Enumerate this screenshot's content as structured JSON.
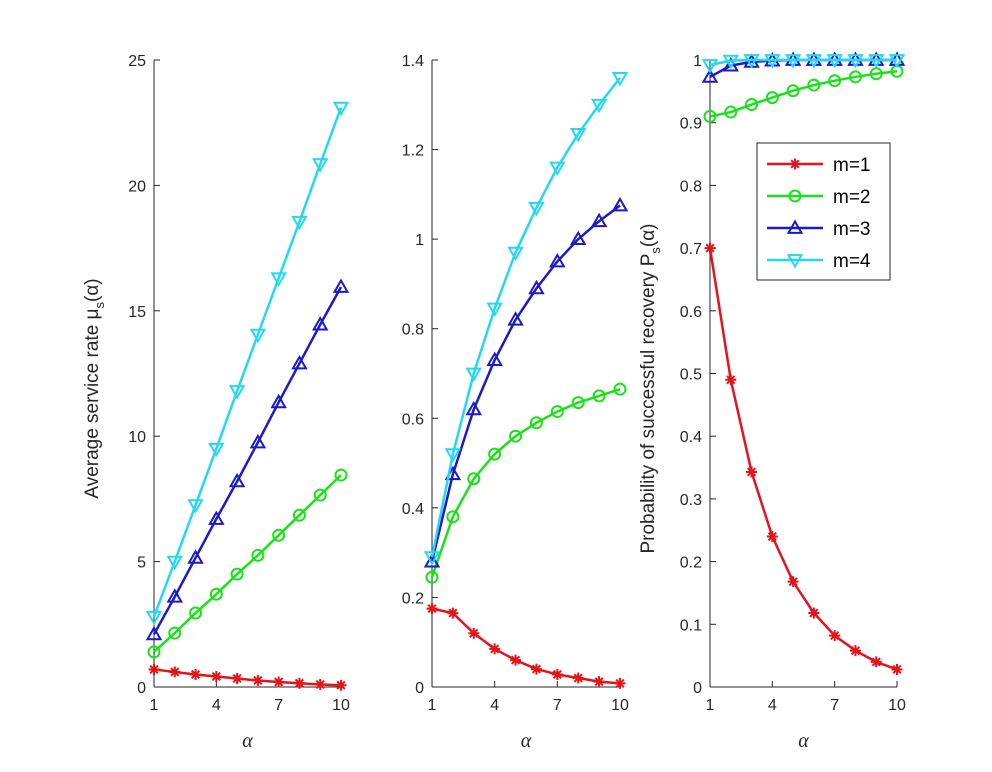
{
  "chart_data": [
    {
      "type": "line",
      "xlabel": "α",
      "ylabel": "Average service rate μ",
      "ylabel_sub": "s",
      "ylabel_arg": "(α)",
      "xlim": [
        1,
        10
      ],
      "ylim": [
        0,
        25
      ],
      "xticks": [
        1,
        4,
        7,
        10
      ],
      "yticks": [
        0,
        5,
        10,
        15,
        20,
        25
      ],
      "ytick_labels": [
        "0",
        "5",
        "10",
        "15",
        "20",
        "25"
      ],
      "x": [
        1,
        2,
        3,
        4,
        5,
        6,
        7,
        8,
        9,
        10
      ],
      "series": [
        {
          "name": "m=1",
          "values": [
            0.7,
            0.6,
            0.5,
            0.42,
            0.34,
            0.26,
            0.2,
            0.15,
            0.1,
            0.07
          ]
        },
        {
          "name": "m=2",
          "values": [
            1.4,
            2.15,
            2.95,
            3.7,
            4.5,
            5.25,
            6.05,
            6.85,
            7.65,
            8.45
          ]
        },
        {
          "name": "m=3",
          "values": [
            2.1,
            3.6,
            5.15,
            6.7,
            8.2,
            9.75,
            11.35,
            12.9,
            14.45,
            15.95
          ]
        },
        {
          "name": "m=4",
          "values": [
            2.8,
            5.0,
            7.25,
            9.5,
            11.8,
            14.05,
            16.3,
            18.55,
            20.85,
            23.1
          ]
        }
      ]
    },
    {
      "type": "line",
      "xlabel": "α",
      "ylabel": "",
      "xlim": [
        1,
        10
      ],
      "ylim": [
        0,
        1.4
      ],
      "xticks": [
        1,
        4,
        7,
        10
      ],
      "yticks": [
        0,
        0.2,
        0.4,
        0.6,
        0.8,
        1.0,
        1.2,
        1.4
      ],
      "ytick_labels": [
        "0",
        "0.2",
        "0.4",
        "0.6",
        "0.8",
        "1",
        "1.2",
        "1.4"
      ],
      "x": [
        1,
        2,
        3,
        4,
        5,
        6,
        7,
        8,
        9,
        10
      ],
      "series": [
        {
          "name": "m=1",
          "values": [
            0.175,
            0.165,
            0.12,
            0.085,
            0.06,
            0.04,
            0.028,
            0.02,
            0.012,
            0.008
          ]
        },
        {
          "name": "m=2",
          "values": [
            0.245,
            0.38,
            0.465,
            0.52,
            0.56,
            0.59,
            0.615,
            0.635,
            0.65,
            0.665
          ]
        },
        {
          "name": "m=3",
          "values": [
            0.28,
            0.475,
            0.62,
            0.73,
            0.82,
            0.89,
            0.95,
            1.0,
            1.04,
            1.075
          ]
        },
        {
          "name": "m=4",
          "values": [
            0.29,
            0.52,
            0.7,
            0.845,
            0.97,
            1.07,
            1.16,
            1.235,
            1.3,
            1.36
          ]
        }
      ]
    },
    {
      "type": "line",
      "xlabel": "α",
      "ylabel": "Probability of successful recovery P",
      "ylabel_sub": "s",
      "ylabel_arg": "(α)",
      "xlim": [
        1,
        10
      ],
      "ylim": [
        0,
        1
      ],
      "xticks": [
        1,
        4,
        7,
        10
      ],
      "yticks": [
        0,
        0.1,
        0.2,
        0.3,
        0.4,
        0.5,
        0.6,
        0.7,
        0.8,
        0.9,
        1.0
      ],
      "ytick_labels": [
        "0",
        "0.1",
        "0.2",
        "0.3",
        "0.4",
        "0.5",
        "0.6",
        "0.7",
        "0.8",
        "0.9",
        "1"
      ],
      "legend": {
        "position": "top-right",
        "entries": [
          "m=1",
          "m=2",
          "m=3",
          "m=4"
        ]
      },
      "x": [
        1,
        2,
        3,
        4,
        5,
        6,
        7,
        8,
        9,
        10
      ],
      "series": [
        {
          "name": "m=1",
          "values": [
            0.7,
            0.49,
            0.343,
            0.24,
            0.168,
            0.118,
            0.082,
            0.058,
            0.04,
            0.028
          ]
        },
        {
          "name": "m=2",
          "values": [
            0.91,
            0.917,
            0.929,
            0.94,
            0.951,
            0.96,
            0.967,
            0.973,
            0.978,
            0.982
          ]
        },
        {
          "name": "m=3",
          "values": [
            0.973,
            0.991,
            0.997,
            0.999,
            1.0,
            1.0,
            1.0,
            1.0,
            1.0,
            1.0
          ]
        },
        {
          "name": "m=4",
          "values": [
            0.992,
            0.999,
            1.0,
            1.0,
            1.0,
            1.0,
            1.0,
            1.0,
            1.0,
            1.0
          ]
        }
      ]
    }
  ],
  "series_styles": [
    {
      "name": "m=1",
      "color": "#e4141b",
      "marker": "asterisk"
    },
    {
      "name": "m=2",
      "color": "#19e219",
      "marker": "circle"
    },
    {
      "name": "m=3",
      "color": "#1a1ac8",
      "marker": "triangle-up"
    },
    {
      "name": "m=4",
      "color": "#23d8f0",
      "marker": "triangle-down"
    }
  ]
}
